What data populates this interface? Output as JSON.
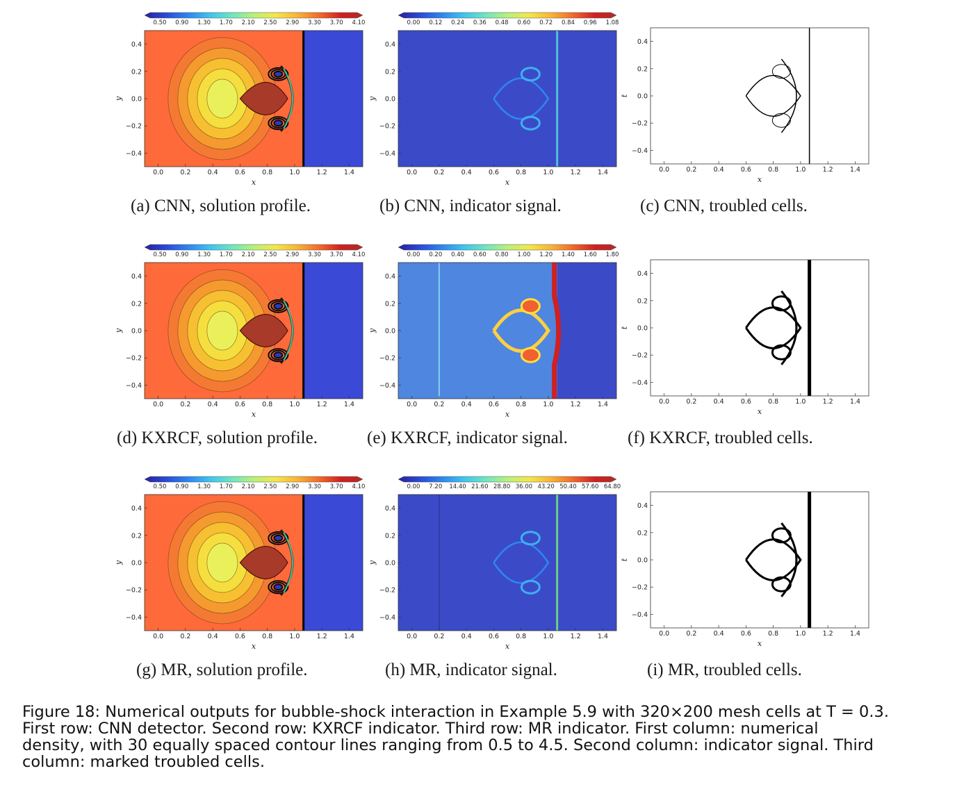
{
  "figure": {
    "caption_lines": [
      "Figure 18: Numerical outputs for bubble-shock interaction in Example 5.9 with 320×200 mesh cells at T = 0.3.",
      "First row: CNN detector. Second row: KXRCF indicator. Third row: MR indicator. First column: numerical",
      "density, with 30 equally spaced contour lines ranging from 0.5 to 4.5. Second column: indicator signal. Third",
      "column: marked troubled cells."
    ]
  },
  "colors": {
    "density_left": "#ff6a3a",
    "density_right": "#3a49d6",
    "indicator_bg": "#3b4bc8",
    "indicator_bg_kxrcf": "#4f86e0",
    "shock": "#000000"
  },
  "chart_data": [
    {
      "id": "a",
      "kind": "solution",
      "caption": "(a) CNN, solution profile.",
      "xlabel": "x",
      "ylabel": "y",
      "xticks": [
        "0.0",
        "0.2",
        "0.4",
        "0.6",
        "0.8",
        "1.0",
        "1.2",
        "1.4"
      ],
      "yticks": [
        "0.4",
        "0.2",
        "0.0",
        "−0.2",
        "−0.4"
      ],
      "colorbar": [
        "0.50",
        "0.90",
        "1.30",
        "1.70",
        "2.10",
        "2.50",
        "2.90",
        "3.30",
        "3.70",
        "4.10"
      ]
    },
    {
      "id": "b",
      "kind": "indicator",
      "caption": "(b) CNN, indicator signal.",
      "xlabel": "x",
      "ylabel": "y",
      "xticks": [
        "0.0",
        "0.2",
        "0.4",
        "0.6",
        "0.8",
        "1.0",
        "1.2",
        "1.4"
      ],
      "yticks": [
        "0.4",
        "0.2",
        "0.0",
        "−0.2",
        "−0.4"
      ],
      "colorbar": [
        "0.00",
        "0.12",
        "0.24",
        "0.36",
        "0.48",
        "0.60",
        "0.72",
        "0.84",
        "0.96",
        "1.08"
      ]
    },
    {
      "id": "c",
      "kind": "troubled",
      "caption": "(c) CNN, troubled cells.",
      "xlabel": "x",
      "ylabel": "t",
      "xticks": [
        "0.0",
        "0.2",
        "0.4",
        "0.6",
        "0.8",
        "1.0",
        "1.2",
        "1.4"
      ],
      "yticks": [
        "0.4",
        "0.2",
        "0.0",
        "−0.2",
        "−0.4"
      ]
    },
    {
      "id": "d",
      "kind": "solution",
      "caption": "(d) KXRCF, solution profile.",
      "xlabel": "x",
      "ylabel": "y",
      "xticks": [
        "0.0",
        "0.2",
        "0.4",
        "0.6",
        "0.8",
        "1.0",
        "1.2",
        "1.4"
      ],
      "yticks": [
        "0.4",
        "0.2",
        "0.0",
        "−0.2",
        "−0.4"
      ],
      "colorbar": [
        "0.50",
        "0.90",
        "1.30",
        "1.70",
        "2.10",
        "2.50",
        "2.90",
        "3.30",
        "3.70",
        "4.10"
      ]
    },
    {
      "id": "e",
      "kind": "indicator-kxrcf",
      "caption": "(e) KXRCF, indicator signal.",
      "xlabel": "x",
      "ylabel": "y",
      "xticks": [
        "0.0",
        "0.2",
        "0.4",
        "0.6",
        "0.8",
        "1.0",
        "1.2",
        "1.4"
      ],
      "yticks": [
        "0.4",
        "0.2",
        "0.0",
        "−0.2",
        "−0.4"
      ],
      "colorbar": [
        "0.00",
        "0.20",
        "0.40",
        "0.60",
        "0.80",
        "1.00",
        "1.20",
        "1.40",
        "1.60",
        "1.80"
      ]
    },
    {
      "id": "f",
      "kind": "troubled",
      "caption": "(f) KXRCF, troubled cells.",
      "xlabel": "x",
      "ylabel": "t",
      "xticks": [
        "0.0",
        "0.2",
        "0.4",
        "0.6",
        "0.8",
        "1.0",
        "1.2",
        "1.4"
      ],
      "yticks": [
        "0.4",
        "0.2",
        "0.0",
        "−0.2",
        "−0.4"
      ]
    },
    {
      "id": "g",
      "kind": "solution",
      "caption": "(g) MR, solution profile.",
      "xlabel": "x",
      "ylabel": "y",
      "xticks": [
        "0.0",
        "0.2",
        "0.4",
        "0.6",
        "0.8",
        "1.0",
        "1.2",
        "1.4"
      ],
      "yticks": [
        "0.4",
        "0.2",
        "0.0",
        "−0.2",
        "−0.4"
      ],
      "colorbar": [
        "0.50",
        "0.90",
        "1.30",
        "1.70",
        "2.10",
        "2.50",
        "2.90",
        "3.30",
        "3.70",
        "4.10"
      ]
    },
    {
      "id": "h",
      "kind": "indicator",
      "caption": "(h) MR, indicator signal.",
      "xlabel": "x",
      "ylabel": "y",
      "xticks": [
        "0.0",
        "0.2",
        "0.4",
        "0.6",
        "0.8",
        "1.0",
        "1.2",
        "1.4"
      ],
      "yticks": [
        "0.4",
        "0.2",
        "0.0",
        "−0.2",
        "−0.4"
      ],
      "colorbar": [
        "0.00",
        "7.20",
        "14.40",
        "21.60",
        "28.80",
        "36.00",
        "43.20",
        "50.40",
        "57.60",
        "64.80"
      ]
    },
    {
      "id": "i",
      "kind": "troubled",
      "caption": "(i) MR, troubled cells.",
      "xlabel": "x",
      "ylabel": "t",
      "xticks": [
        "0.0",
        "0.2",
        "0.4",
        "0.6",
        "0.8",
        "1.0",
        "1.2",
        "1.4"
      ],
      "yticks": [
        "0.4",
        "0.2",
        "0.0",
        "−0.2",
        "−0.4"
      ]
    }
  ]
}
